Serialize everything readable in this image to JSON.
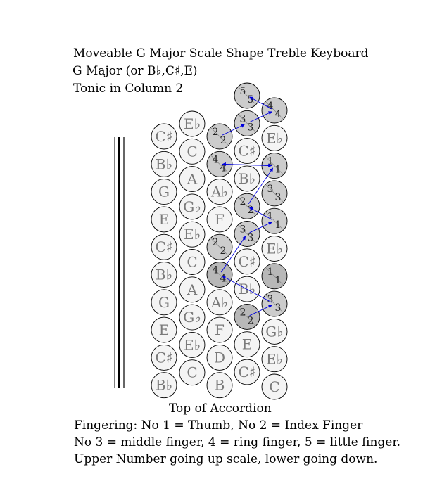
{
  "header": {
    "title": "Moveable G Major Scale Shape Treble Keyboard",
    "subtitle": "G Major (or B♭,C♯,E)",
    "tonic": "Tonic in Column 2"
  },
  "footer": {
    "top_label": "Top of Accordion",
    "line1": "Fingering: No 1 = Thumb, No 2 = Index Finger",
    "line2": "No 3 = middle finger, 4 = ring finger, 5 = little finger.",
    "line3": "Upper Number going up scale, lower going down."
  },
  "colors": {
    "highlight": "#cccccc",
    "dark_highlight": "#b8b8b8",
    "button": "#f4f4f4",
    "arrow": "#0000dd",
    "note_text": "#7a7a7a"
  },
  "columns": [
    {
      "buttons": [
        {
          "note": "C♯"
        },
        {
          "note": "B♭"
        },
        {
          "note": "G"
        },
        {
          "note": "E"
        },
        {
          "note": "C♯"
        },
        {
          "note": "B♭"
        },
        {
          "note": "G"
        },
        {
          "note": "E"
        },
        {
          "note": "C♯"
        },
        {
          "note": "B♭"
        }
      ]
    },
    {
      "buttons": [
        {
          "note": "E♭"
        },
        {
          "note": "C"
        },
        {
          "note": "A"
        },
        {
          "note": "G♭"
        },
        {
          "note": "E♭"
        },
        {
          "note": "C"
        },
        {
          "note": "A"
        },
        {
          "note": "G♭"
        },
        {
          "note": "E♭"
        },
        {
          "note": "C"
        }
      ]
    },
    {
      "buttons": [
        {
          "note": "",
          "up": "2",
          "down": "2",
          "hl": 1
        },
        {
          "note": "",
          "up": "4",
          "down": "4",
          "hl": 1
        },
        {
          "note": "A♭"
        },
        {
          "note": "F"
        },
        {
          "note": "",
          "up": "2",
          "down": "2",
          "hl": 1
        },
        {
          "note": "",
          "up": "4",
          "down": "4",
          "hl": 2
        },
        {
          "note": "A♭"
        },
        {
          "note": "F"
        },
        {
          "note": "D"
        },
        {
          "note": "B"
        }
      ]
    },
    {
      "buttons": [
        {
          "note": "",
          "up": "5",
          "down": "5",
          "hl": 1
        },
        {
          "note": "",
          "up": "3",
          "down": "3",
          "hl": 1
        },
        {
          "note": "C♯"
        },
        {
          "note": "B♭"
        },
        {
          "note": "",
          "up": "2",
          "down": "2",
          "hl": 1
        },
        {
          "note": "",
          "up": "3",
          "down": "3",
          "hl": 1
        },
        {
          "note": "C♯"
        },
        {
          "note": "B♭"
        },
        {
          "note": "",
          "up": "2",
          "down": "2",
          "hl": 2
        },
        {
          "note": "E"
        },
        {
          "note": "C♯"
        }
      ]
    },
    {
      "buttons": [
        {
          "note": "",
          "up": "4",
          "down": "4",
          "hl": 1
        },
        {
          "note": "E♭"
        },
        {
          "note": "",
          "up": "1",
          "down": "1",
          "hl": 1
        },
        {
          "note": "",
          "up": "3",
          "down": "3",
          "hl": 1
        },
        {
          "note": "",
          "up": "1",
          "down": "1",
          "hl": 1
        },
        {
          "note": "E♭"
        },
        {
          "note": "",
          "up": "1",
          "down": "1",
          "hl": 2
        },
        {
          "note": "",
          "up": "3",
          "down": "3",
          "hl": 1
        },
        {
          "note": "G♭"
        },
        {
          "note": "E♭"
        },
        {
          "note": "C"
        }
      ]
    }
  ]
}
